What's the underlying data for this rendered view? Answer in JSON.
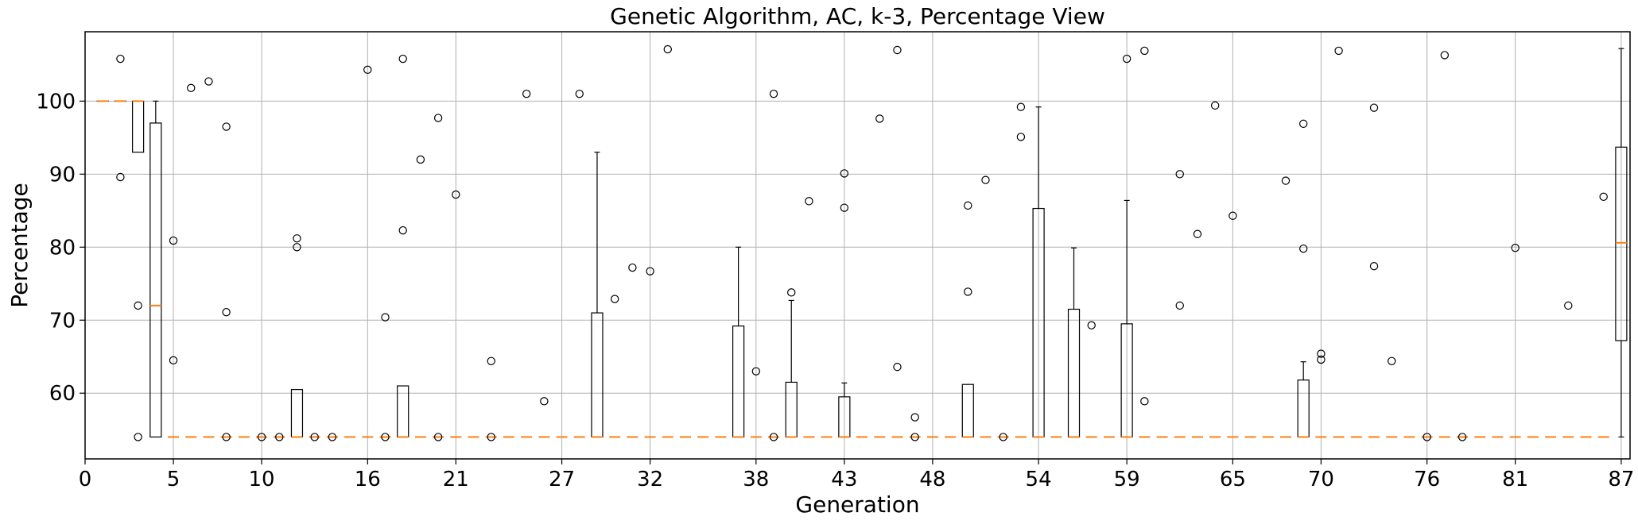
{
  "chart_data": {
    "type": "box",
    "title": "Genetic Algorithm, AC, k-3, Percentage View",
    "xlabel": "Generation",
    "ylabel": "Percentage",
    "xlim": [
      0,
      87.5
    ],
    "ylim": [
      51,
      109.5
    ],
    "grid": true,
    "xticks": [
      0,
      5,
      10,
      16,
      21,
      27,
      32,
      38,
      43,
      48,
      54,
      59,
      65,
      70,
      76,
      81,
      87
    ],
    "yticks": [
      60,
      70,
      80,
      90,
      100
    ],
    "boxes": [
      {
        "x": 1,
        "q1": 100,
        "median": 100,
        "q3": 100,
        "whislo": 100,
        "whishi": 100
      },
      {
        "x": 2,
        "q1": 100,
        "median": 100,
        "q3": 100,
        "whislo": 100,
        "whishi": 100
      },
      {
        "x": 3,
        "q1": 93,
        "median": 100,
        "q3": 100,
        "whislo": 93,
        "whishi": 100
      },
      {
        "x": 4,
        "q1": 54,
        "median": 72,
        "q3": 97,
        "whislo": 54,
        "whishi": 100
      },
      {
        "x": 12,
        "q1": 54,
        "median": 54,
        "q3": 60.5,
        "whislo": 54,
        "whishi": 60.5
      },
      {
        "x": 18,
        "q1": 54,
        "median": 54,
        "q3": 61,
        "whislo": 54,
        "whishi": 61
      },
      {
        "x": 29,
        "q1": 54,
        "median": 54,
        "q3": 71,
        "whislo": 54,
        "whishi": 93
      },
      {
        "x": 37,
        "q1": 54,
        "median": 54,
        "q3": 69.2,
        "whislo": 54,
        "whishi": 80
      },
      {
        "x": 40,
        "q1": 54,
        "median": 54,
        "q3": 61.5,
        "whislo": 54,
        "whishi": 72.7
      },
      {
        "x": 43,
        "q1": 54,
        "median": 54,
        "q3": 59.5,
        "whislo": 54,
        "whishi": 61.4
      },
      {
        "x": 50,
        "q1": 54,
        "median": 54,
        "q3": 61.2,
        "whislo": 54,
        "whishi": 61.2
      },
      {
        "x": 54,
        "q1": 54,
        "median": 54,
        "q3": 85.3,
        "whislo": 54,
        "whishi": 99.2
      },
      {
        "x": 56,
        "q1": 54,
        "median": 54,
        "q3": 71.5,
        "whislo": 54,
        "whishi": 79.9
      },
      {
        "x": 59,
        "q1": 54,
        "median": 54,
        "q3": 69.5,
        "whislo": 54,
        "whishi": 86.4
      },
      {
        "x": 69,
        "q1": 54,
        "median": 54,
        "q3": 61.8,
        "whislo": 54,
        "whishi": 64.3
      },
      {
        "x": 87,
        "q1": 67.2,
        "median": 80.6,
        "q3": 93.7,
        "whislo": 54,
        "whishi": 107.2
      }
    ],
    "flat_median": 54,
    "flat_median_range": [
      5,
      86
    ],
    "outliers": [
      {
        "x": 2,
        "y": 105.8
      },
      {
        "x": 2,
        "y": 89.6
      },
      {
        "x": 3,
        "y": 72
      },
      {
        "x": 3,
        "y": 54
      },
      {
        "x": 5,
        "y": 80.9
      },
      {
        "x": 5,
        "y": 64.5
      },
      {
        "x": 6,
        "y": 101.8
      },
      {
        "x": 7,
        "y": 102.7
      },
      {
        "x": 8,
        "y": 96.5
      },
      {
        "x": 8,
        "y": 71.1
      },
      {
        "x": 8,
        "y": 54
      },
      {
        "x": 10,
        "y": 54
      },
      {
        "x": 11,
        "y": 54
      },
      {
        "x": 12,
        "y": 81.2
      },
      {
        "x": 12,
        "y": 80
      },
      {
        "x": 13,
        "y": 54
      },
      {
        "x": 14,
        "y": 54
      },
      {
        "x": 16,
        "y": 104.3
      },
      {
        "x": 17,
        "y": 70.4
      },
      {
        "x": 17,
        "y": 54
      },
      {
        "x": 18,
        "y": 105.8
      },
      {
        "x": 18,
        "y": 82.3
      },
      {
        "x": 19,
        "y": 92
      },
      {
        "x": 20,
        "y": 97.7
      },
      {
        "x": 20,
        "y": 54
      },
      {
        "x": 21,
        "y": 87.2
      },
      {
        "x": 23,
        "y": 64.4
      },
      {
        "x": 23,
        "y": 54
      },
      {
        "x": 25,
        "y": 101
      },
      {
        "x": 26,
        "y": 58.9
      },
      {
        "x": 28,
        "y": 101
      },
      {
        "x": 30,
        "y": 72.9
      },
      {
        "x": 31,
        "y": 77.2
      },
      {
        "x": 32,
        "y": 76.7
      },
      {
        "x": 33,
        "y": 107.1
      },
      {
        "x": 38,
        "y": 63
      },
      {
        "x": 39,
        "y": 101
      },
      {
        "x": 39,
        "y": 54
      },
      {
        "x": 40,
        "y": 73.8
      },
      {
        "x": 41,
        "y": 86.3
      },
      {
        "x": 43,
        "y": 90.1
      },
      {
        "x": 43,
        "y": 85.4
      },
      {
        "x": 45,
        "y": 97.6
      },
      {
        "x": 46,
        "y": 107
      },
      {
        "x": 46,
        "y": 63.6
      },
      {
        "x": 47,
        "y": 56.7
      },
      {
        "x": 47,
        "y": 54
      },
      {
        "x": 50,
        "y": 85.7
      },
      {
        "x": 50,
        "y": 73.9
      },
      {
        "x": 51,
        "y": 89.2
      },
      {
        "x": 52,
        "y": 54
      },
      {
        "x": 53,
        "y": 99.2
      },
      {
        "x": 53,
        "y": 95.1
      },
      {
        "x": 57,
        "y": 69.3
      },
      {
        "x": 59,
        "y": 105.8
      },
      {
        "x": 60,
        "y": 106.9
      },
      {
        "x": 60,
        "y": 58.9
      },
      {
        "x": 62,
        "y": 90
      },
      {
        "x": 62,
        "y": 72
      },
      {
        "x": 63,
        "y": 81.8
      },
      {
        "x": 64,
        "y": 99.4
      },
      {
        "x": 65,
        "y": 84.3
      },
      {
        "x": 68,
        "y": 89.1
      },
      {
        "x": 69,
        "y": 96.9
      },
      {
        "x": 69,
        "y": 79.8
      },
      {
        "x": 70,
        "y": 65.4
      },
      {
        "x": 70,
        "y": 64.6
      },
      {
        "x": 71,
        "y": 106.9
      },
      {
        "x": 73,
        "y": 99.1
      },
      {
        "x": 73,
        "y": 77.4
      },
      {
        "x": 74,
        "y": 64.4
      },
      {
        "x": 76,
        "y": 54
      },
      {
        "x": 77,
        "y": 106.3
      },
      {
        "x": 78,
        "y": 54
      },
      {
        "x": 81,
        "y": 79.9
      },
      {
        "x": 84,
        "y": 72
      },
      {
        "x": 86,
        "y": 86.9
      }
    ],
    "colors": {
      "box": "#000000",
      "median": "#ff7f0e",
      "grid": "#b0b0b0"
    }
  }
}
